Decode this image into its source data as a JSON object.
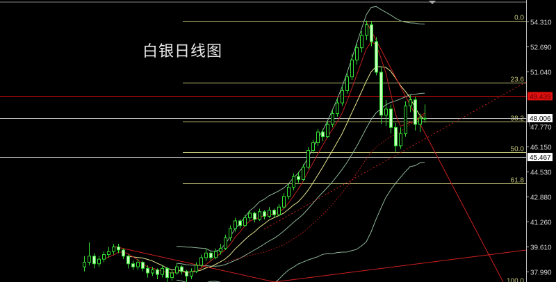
{
  "chart_data": {
    "type": "candlestick",
    "title": "白银日线图",
    "ylim": [
      37.17,
      54.62
    ],
    "y_ticks": [
      "54.310",
      "52.690",
      "51.040",
      "47.770",
      "46.150",
      "44.530",
      "42.880",
      "41.260",
      "39.610",
      "37.990"
    ],
    "price_markers": [
      {
        "label": "49.439",
        "value": 49.439,
        "color": "#e01010"
      },
      {
        "label": "48.006",
        "value": 48.006,
        "color": "#ffffff"
      },
      {
        "label": "45.467",
        "value": 45.467,
        "color": "#ffffff"
      }
    ],
    "fibonacci": {
      "high": 54.37,
      "low": 37.17,
      "color": "#c8c87a",
      "levels": [
        {
          "label": "0.0",
          "ratio": 0.0
        },
        {
          "label": "23.6",
          "ratio": 0.236
        },
        {
          "label": "38.2",
          "ratio": 0.382
        },
        {
          "label": "50.0",
          "ratio": 0.5
        },
        {
          "label": "61.8",
          "ratio": 0.618
        },
        {
          "label": "100.0",
          "ratio": 1.0
        }
      ]
    },
    "candles": [
      [
        38.3,
        39.0,
        38.0,
        38.6
      ],
      [
        38.6,
        39.9,
        38.4,
        39.0
      ],
      [
        39.0,
        39.2,
        38.2,
        38.5
      ],
      [
        38.5,
        39.0,
        38.3,
        38.8
      ],
      [
        38.8,
        39.3,
        38.6,
        39.1
      ],
      [
        39.1,
        39.6,
        38.9,
        39.3
      ],
      [
        39.3,
        39.8,
        39.1,
        39.6
      ],
      [
        39.6,
        39.8,
        39.2,
        39.4
      ],
      [
        39.4,
        39.5,
        38.8,
        39.0
      ],
      [
        39.0,
        39.1,
        38.2,
        38.5
      ],
      [
        38.5,
        38.7,
        38.1,
        38.3
      ],
      [
        38.3,
        38.8,
        38.1,
        38.6
      ],
      [
        38.6,
        38.7,
        38.0,
        38.2
      ],
      [
        38.2,
        38.4,
        37.6,
        37.9
      ],
      [
        37.9,
        38.3,
        37.7,
        38.1
      ],
      [
        38.1,
        38.2,
        37.5,
        37.8
      ],
      [
        37.8,
        38.4,
        37.6,
        38.2
      ],
      [
        38.2,
        38.3,
        37.3,
        37.6
      ],
      [
        37.6,
        38.1,
        37.4,
        37.9
      ],
      [
        37.9,
        38.5,
        37.8,
        38.3
      ],
      [
        38.3,
        38.4,
        37.8,
        38.0
      ],
      [
        38.0,
        38.1,
        37.2,
        37.7
      ],
      [
        37.7,
        38.2,
        37.5,
        38.0
      ],
      [
        38.0,
        38.6,
        37.9,
        38.4
      ],
      [
        38.4,
        39.1,
        38.3,
        38.9
      ],
      [
        38.9,
        39.5,
        38.7,
        39.2
      ],
      [
        39.2,
        39.3,
        38.7,
        38.9
      ],
      [
        38.9,
        39.5,
        38.8,
        39.3
      ],
      [
        39.3,
        39.8,
        39.1,
        39.5
      ],
      [
        39.5,
        40.4,
        39.4,
        40.2
      ],
      [
        40.2,
        41.0,
        40.0,
        40.8
      ],
      [
        40.8,
        41.5,
        40.6,
        41.3
      ],
      [
        41.3,
        41.4,
        40.8,
        41.0
      ],
      [
        41.0,
        41.7,
        40.9,
        41.5
      ],
      [
        41.5,
        42.0,
        41.3,
        41.8
      ],
      [
        41.8,
        41.9,
        41.2,
        41.4
      ],
      [
        41.4,
        42.1,
        41.3,
        41.9
      ],
      [
        41.9,
        42.0,
        41.4,
        41.6
      ],
      [
        41.6,
        42.2,
        41.5,
        42.0
      ],
      [
        42.0,
        42.1,
        41.5,
        41.7
      ],
      [
        41.7,
        42.4,
        41.6,
        42.2
      ],
      [
        42.2,
        43.1,
        42.1,
        42.9
      ],
      [
        42.9,
        43.7,
        42.7,
        43.5
      ],
      [
        43.5,
        44.4,
        43.3,
        44.2
      ],
      [
        44.2,
        44.5,
        43.8,
        44.0
      ],
      [
        44.0,
        45.0,
        43.9,
        44.8
      ],
      [
        44.8,
        46.1,
        44.7,
        45.9
      ],
      [
        45.9,
        46.6,
        45.7,
        46.4
      ],
      [
        46.4,
        47.3,
        46.2,
        47.1
      ],
      [
        47.1,
        47.3,
        46.5,
        46.8
      ],
      [
        46.8,
        47.8,
        46.7,
        47.6
      ],
      [
        47.6,
        48.5,
        47.4,
        48.3
      ],
      [
        48.3,
        49.3,
        48.1,
        49.0
      ],
      [
        49.0,
        50.1,
        48.8,
        49.8
      ],
      [
        49.8,
        51.0,
        49.6,
        50.7
      ],
      [
        50.7,
        52.2,
        50.5,
        51.8
      ],
      [
        51.8,
        52.9,
        51.5,
        52.6
      ],
      [
        52.6,
        53.7,
        52.3,
        53.4
      ],
      [
        53.4,
        54.37,
        53.1,
        54.1
      ],
      [
        54.1,
        54.3,
        52.7,
        53.0
      ],
      [
        53.0,
        53.3,
        50.8,
        51.0
      ],
      [
        51.0,
        51.3,
        47.6,
        48.2
      ],
      [
        48.2,
        49.2,
        47.5,
        48.6
      ],
      [
        48.6,
        48.9,
        47.0,
        47.4
      ],
      [
        47.4,
        47.7,
        45.8,
        46.2
      ],
      [
        46.2,
        47.4,
        46.0,
        47.0
      ],
      [
        47.0,
        49.1,
        46.8,
        48.8
      ],
      [
        48.8,
        49.5,
        48.4,
        49.2
      ],
      [
        49.2,
        49.4,
        47.2,
        47.6
      ],
      [
        47.6,
        48.3,
        47.1,
        48.0
      ],
      [
        48.0,
        48.9,
        47.7,
        48.0
      ]
    ],
    "colors": {
      "bull": "#33dd33",
      "bear_fill": "#c8ffc0",
      "ma_fast": "#c02020",
      "ma_slow": "#e8e890",
      "bands": "#8fb89a",
      "trendline": "#d02020",
      "background": "#000000",
      "axis": "#c0c0c0"
    }
  }
}
